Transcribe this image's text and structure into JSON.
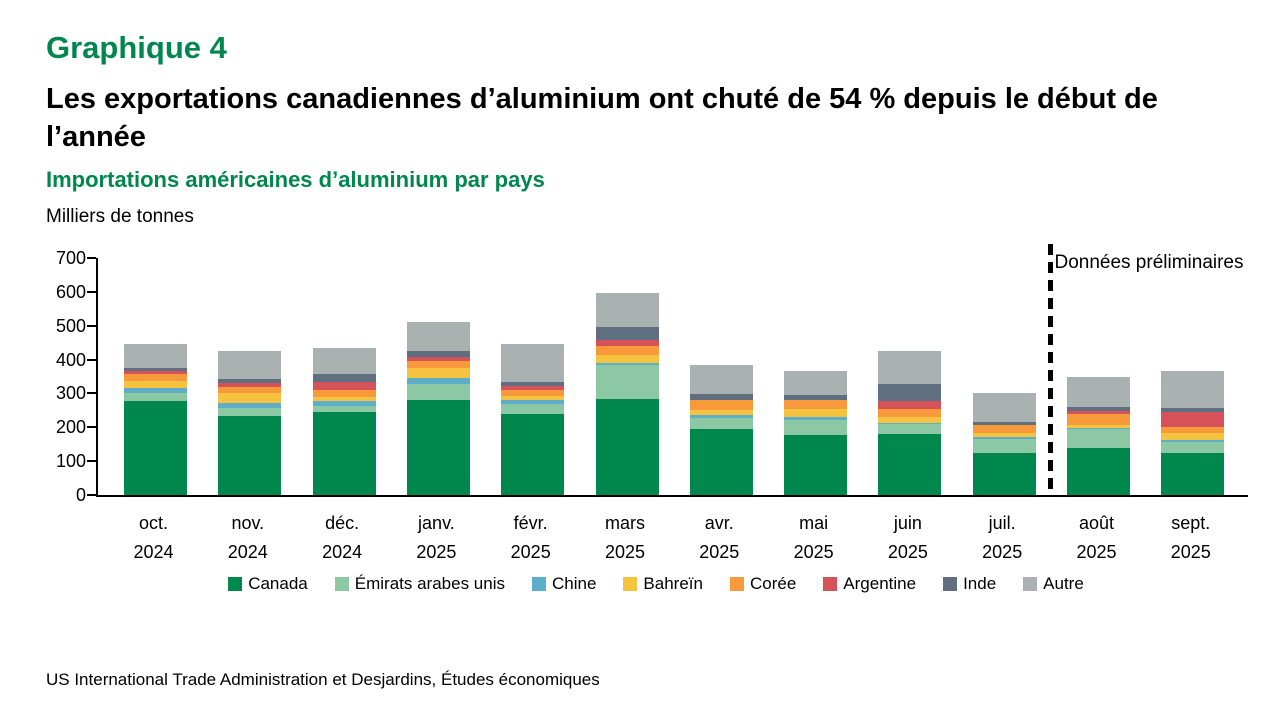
{
  "header": {
    "figure_label": "Graphique 4",
    "headline": "Les exportations canadiennes d’aluminium ont chuté de 54 % depuis le début de l’année",
    "subtitle": "Importations américaines d’aluminium par pays",
    "unit_label": "Milliers de tonnes"
  },
  "footer": {
    "source": "US International Trade Administration et Desjardins, Études économiques"
  },
  "colors": {
    "accent_green": "#00874E",
    "axis": "#000000",
    "separator": "#000000"
  },
  "chart_data": {
    "type": "bar",
    "stacked": true,
    "title": "Importations américaines d’aluminium par pays",
    "ylabel": "Milliers de tonnes",
    "xlabel": "",
    "ylim": [
      0,
      700
    ],
    "ytick_step": 100,
    "grid": false,
    "legend_position": "bottom",
    "annotation_text": "Données préliminaires",
    "preliminary_start_category": "août 2025",
    "categories": [
      {
        "month": "oct.",
        "year": "2024"
      },
      {
        "month": "nov.",
        "year": "2024"
      },
      {
        "month": "déc.",
        "year": "2024"
      },
      {
        "month": "janv.",
        "year": "2025"
      },
      {
        "month": "févr.",
        "year": "2025"
      },
      {
        "month": "mars",
        "year": "2025"
      },
      {
        "month": "avr.",
        "year": "2025"
      },
      {
        "month": "mai",
        "year": "2025"
      },
      {
        "month": "juin",
        "year": "2025"
      },
      {
        "month": "juil.",
        "year": "2025"
      },
      {
        "month": "août",
        "year": "2025"
      },
      {
        "month": "sept.",
        "year": "2025"
      }
    ],
    "series": [
      {
        "name": "Canada",
        "color": "#00874E",
        "values": [
          278,
          233,
          245,
          280,
          240,
          285,
          195,
          178,
          180,
          125,
          140,
          125
        ]
      },
      {
        "name": "Émirats arabes unis",
        "color": "#8DC8A5",
        "values": [
          23,
          25,
          17,
          47,
          30,
          98,
          32,
          44,
          30,
          41,
          54,
          32
        ]
      },
      {
        "name": "Chine",
        "color": "#5FAEC9",
        "values": [
          14,
          15,
          15,
          19,
          10,
          6,
          9,
          8,
          4,
          6,
          4,
          5
        ]
      },
      {
        "name": "Bahreïn",
        "color": "#F5C340",
        "values": [
          21,
          28,
          14,
          30,
          13,
          24,
          15,
          25,
          17,
          12,
          9,
          20
        ]
      },
      {
        "name": "Corée",
        "color": "#F8993B",
        "values": [
          21,
          18,
          19,
          21,
          18,
          27,
          29,
          26,
          24,
          23,
          33,
          20
        ]
      },
      {
        "name": "Argentine",
        "color": "#D5525B",
        "values": [
          8,
          11,
          25,
          12,
          12,
          18,
          0,
          0,
          22,
          0,
          8,
          44
        ]
      },
      {
        "name": "Inde",
        "color": "#5F6F80",
        "values": [
          10,
          14,
          22,
          16,
          12,
          38,
          18,
          14,
          50,
          10,
          13,
          12
        ]
      },
      {
        "name": "Autre",
        "color": "#AAB2B1",
        "values": [
          72,
          81,
          78,
          87,
          112,
          100,
          86,
          72,
          98,
          85,
          87,
          107
        ]
      }
    ]
  }
}
